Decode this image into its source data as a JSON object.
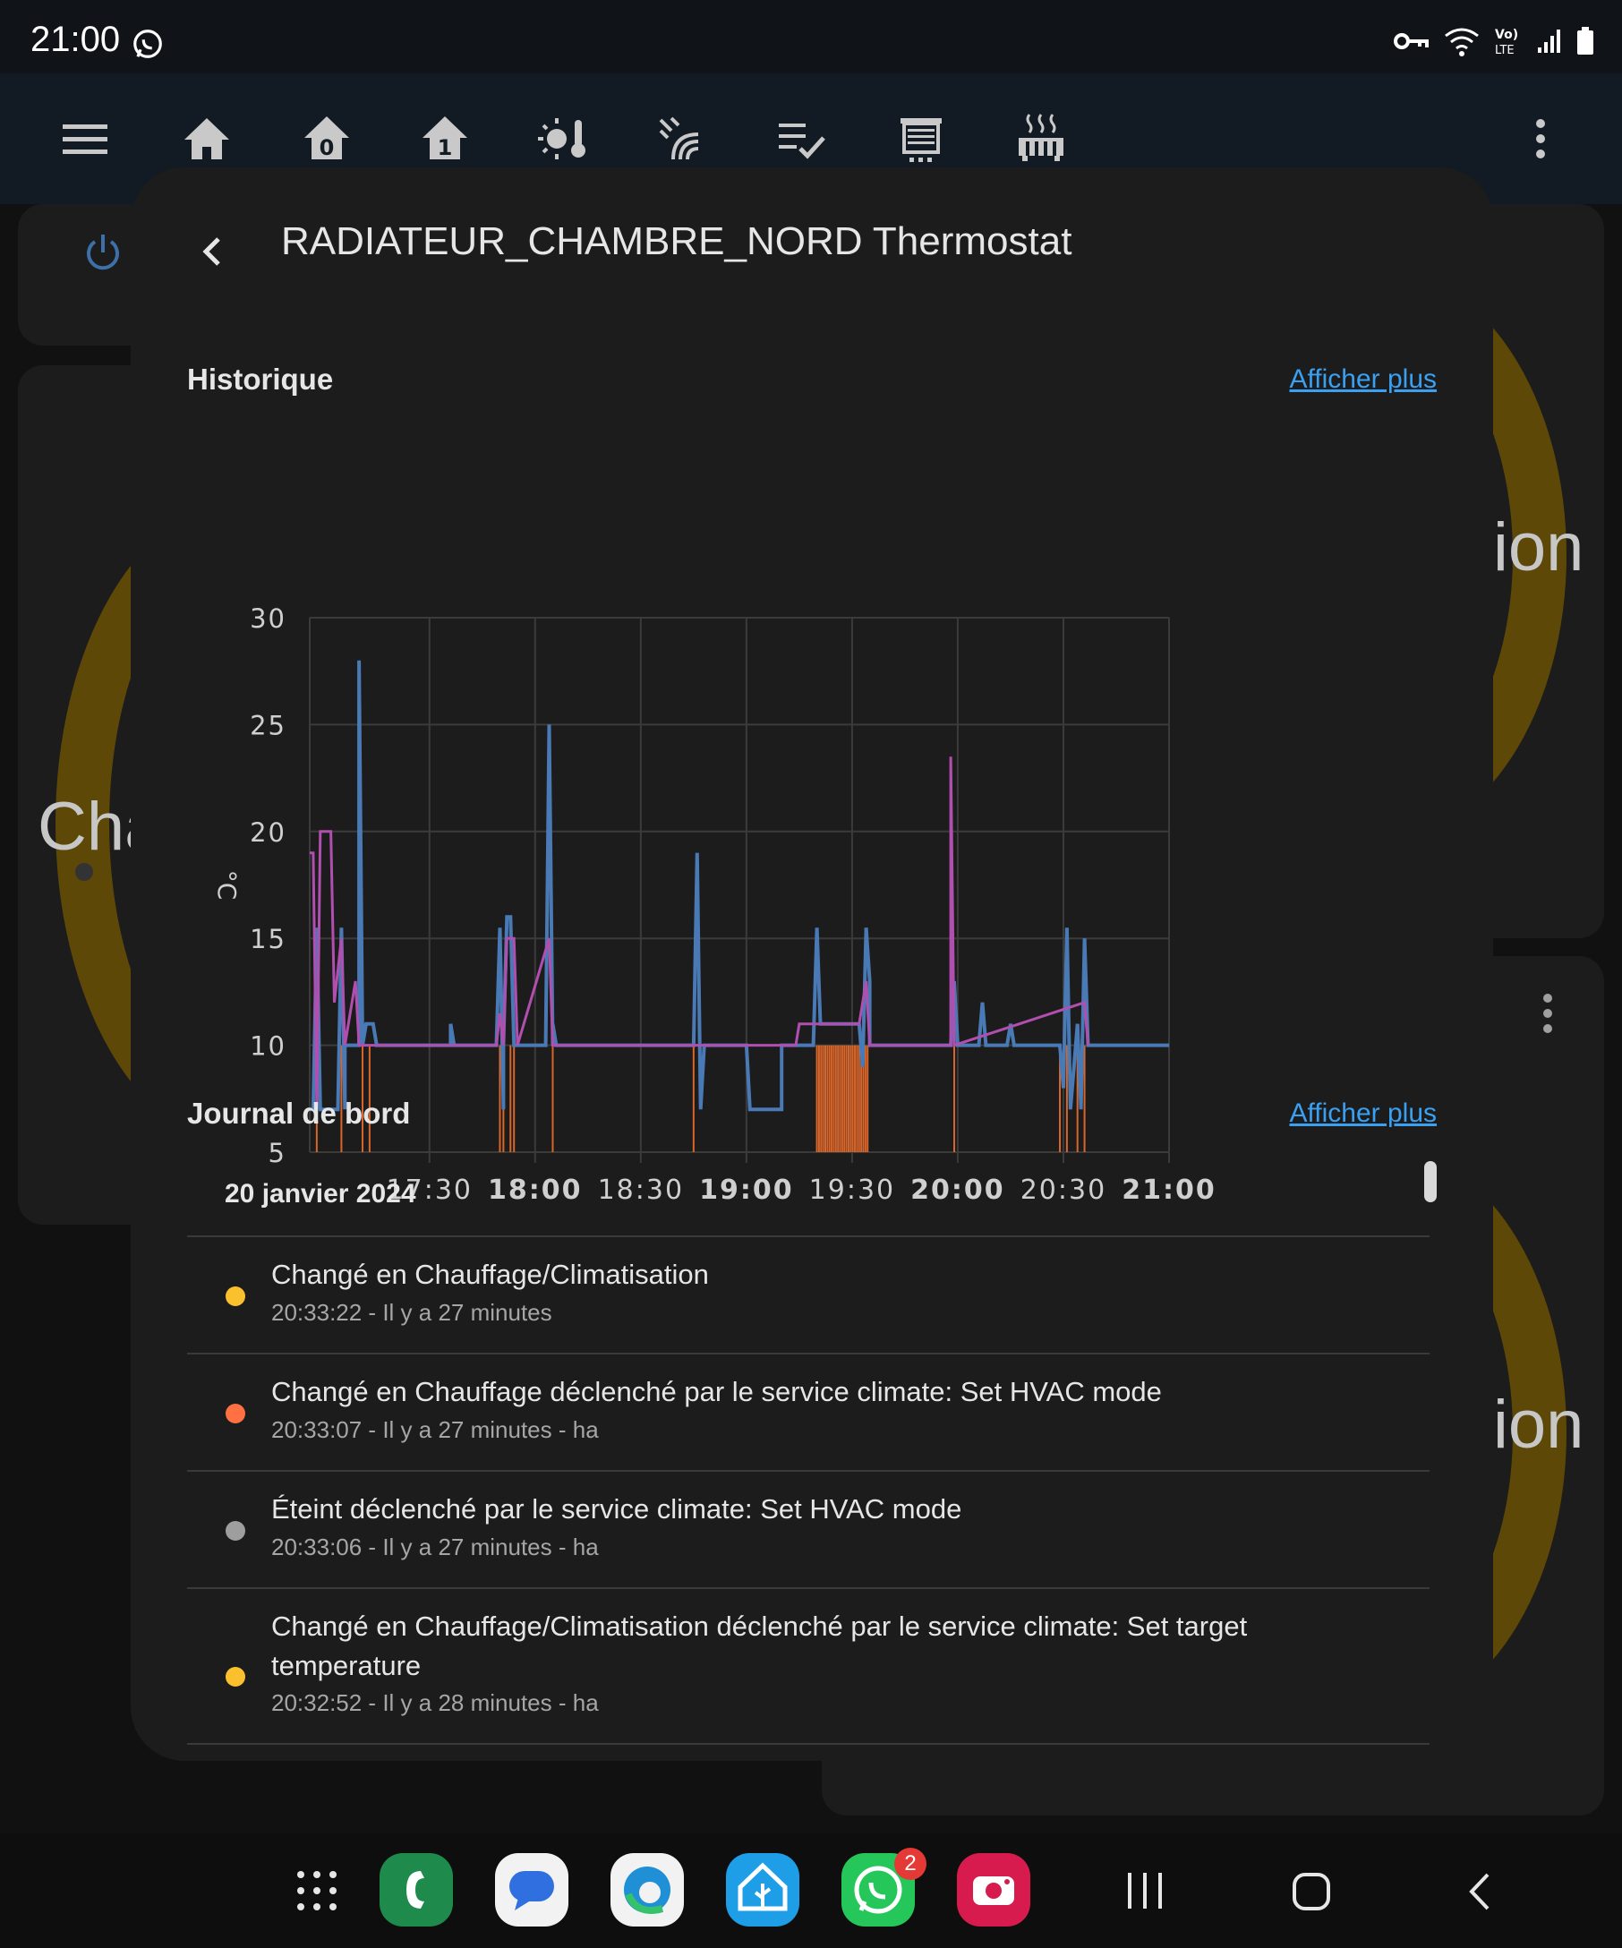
{
  "status_bar": {
    "time": "21:00"
  },
  "dialog": {
    "title": "RADIATEUR_CHAMBRE_NORD Thermostat",
    "history_title": "Historique",
    "logbook_title": "Journal de bord",
    "show_more": "Afficher plus",
    "logbook_date": "20 janvier 2024",
    "entries": [
      {
        "message": "Changé en Chauffage/Climatisation",
        "meta": "20:33:22 - Il y a 27 minutes",
        "dot_color": "#fbc02d"
      },
      {
        "message": "Changé en Chauffage déclenché par le service climate: Set HVAC mode",
        "meta": "20:33:07 - Il y a 27 minutes - ha",
        "dot_color": "#ff7043"
      },
      {
        "message": "Éteint déclenché par le service climate: Set HVAC mode",
        "meta": "20:33:06 - Il y a 27 minutes - ha",
        "dot_color": "#9e9e9e"
      },
      {
        "message": "Changé en Chauffage/Climatisation déclenché par le service climate: Set target temperature",
        "meta": "20:32:52 - Il y a 28 minutes - ha",
        "dot_color": "#fbc02d"
      }
    ]
  },
  "background": {
    "text_left": "Cha",
    "text_right_1": "ion",
    "text_right_2": "ion"
  },
  "nav": {
    "whatsapp_badge": "2"
  },
  "chart_data": {
    "type": "line",
    "ylabel": "°C",
    "ylim": [
      5,
      30
    ],
    "yticks": [
      "5",
      "10",
      "15",
      "20",
      "25",
      "30"
    ],
    "xticks": [
      {
        "label": "17:30",
        "bold": false
      },
      {
        "label": "18:00",
        "bold": true
      },
      {
        "label": "18:30",
        "bold": false
      },
      {
        "label": "19:00",
        "bold": true
      },
      {
        "label": "19:30",
        "bold": false
      },
      {
        "label": "20:00",
        "bold": true
      },
      {
        "label": "20:30",
        "bold": false
      },
      {
        "label": "21:00",
        "bold": true
      }
    ],
    "xlim_minutes": [
      1016,
      1260
    ],
    "series": [
      {
        "color": "#4a7ab5",
        "points": [
          [
            1016,
            7
          ],
          [
            1017,
            7
          ],
          [
            1018,
            15.5
          ],
          [
            1019,
            7
          ],
          [
            1020,
            7
          ],
          [
            1021,
            7
          ],
          [
            1023,
            7
          ],
          [
            1024,
            7
          ],
          [
            1025,
            15.5
          ],
          [
            1026,
            7
          ],
          [
            1026,
            10
          ],
          [
            1030,
            10
          ],
          [
            1030,
            28
          ],
          [
            1031,
            10
          ],
          [
            1032,
            11
          ],
          [
            1034,
            11
          ],
          [
            1035,
            10
          ],
          [
            1056,
            10
          ],
          [
            1056,
            11
          ],
          [
            1057,
            10
          ],
          [
            1069,
            10
          ],
          [
            1070,
            15.5
          ],
          [
            1071,
            7
          ],
          [
            1071,
            10
          ],
          [
            1072,
            16
          ],
          [
            1073,
            16
          ],
          [
            1074,
            10
          ],
          [
            1083,
            10
          ],
          [
            1084,
            25
          ],
          [
            1085,
            10
          ],
          [
            1085,
            11
          ],
          [
            1086,
            10
          ],
          [
            1125,
            10
          ],
          [
            1126,
            19
          ],
          [
            1127,
            7
          ],
          [
            1128,
            10
          ],
          [
            1140,
            10
          ],
          [
            1141,
            7
          ],
          [
            1150,
            7
          ],
          [
            1150,
            10
          ],
          [
            1159,
            10
          ],
          [
            1160,
            15.5
          ],
          [
            1161,
            11
          ],
          [
            1172,
            11
          ],
          [
            1173,
            9
          ],
          [
            1174,
            15.5
          ],
          [
            1175,
            13
          ],
          [
            1175,
            10
          ],
          [
            1198,
            10
          ],
          [
            1199,
            13
          ],
          [
            1200,
            10
          ],
          [
            1206,
            10
          ],
          [
            1207,
            12
          ],
          [
            1208,
            10
          ],
          [
            1214,
            10
          ],
          [
            1215,
            11
          ],
          [
            1216,
            10
          ],
          [
            1229,
            10
          ],
          [
            1230,
            8
          ],
          [
            1231,
            15.5
          ],
          [
            1232,
            7
          ],
          [
            1233,
            9
          ],
          [
            1234,
            11
          ],
          [
            1235,
            7
          ],
          [
            1236,
            15
          ],
          [
            1237,
            10
          ],
          [
            1260,
            10
          ]
        ]
      },
      {
        "color": "#b04fb0",
        "points": [
          [
            1016,
            19
          ],
          [
            1017,
            19
          ],
          [
            1018,
            7
          ],
          [
            1019,
            20
          ],
          [
            1021,
            20
          ],
          [
            1022,
            20
          ],
          [
            1023,
            12
          ],
          [
            1025,
            15
          ],
          [
            1026,
            10
          ],
          [
            1029,
            13
          ],
          [
            1030,
            10
          ],
          [
            1050,
            10
          ],
          [
            1069,
            10
          ],
          [
            1070,
            11.5
          ],
          [
            1071,
            10
          ],
          [
            1072,
            15
          ],
          [
            1074,
            15
          ],
          [
            1075,
            10
          ],
          [
            1084,
            15
          ],
          [
            1085,
            10
          ],
          [
            1146,
            10
          ],
          [
            1148,
            10
          ],
          [
            1154,
            10
          ],
          [
            1155,
            11
          ],
          [
            1172,
            11
          ],
          [
            1174,
            13
          ],
          [
            1175,
            10
          ],
          [
            1198,
            10
          ],
          [
            1198,
            23.5
          ],
          [
            1199,
            10
          ],
          [
            1236,
            12
          ],
          [
            1237,
            10
          ]
        ]
      }
    ],
    "heating_bars": [
      1018,
      1025,
      1031,
      1033,
      1070,
      1071,
      1073,
      1074,
      1085,
      1125,
      1160,
      1160.6,
      1161.2,
      1161.8,
      1162.4,
      1163,
      1163.6,
      1164.2,
      1164.8,
      1165.4,
      1166,
      1166.6,
      1167.2,
      1167.8,
      1168.4,
      1169,
      1169.6,
      1170.2,
      1170.8,
      1171.4,
      1172,
      1172.6,
      1173.2,
      1173.8,
      1174.4,
      1199,
      1229,
      1231,
      1234,
      1236
    ]
  }
}
